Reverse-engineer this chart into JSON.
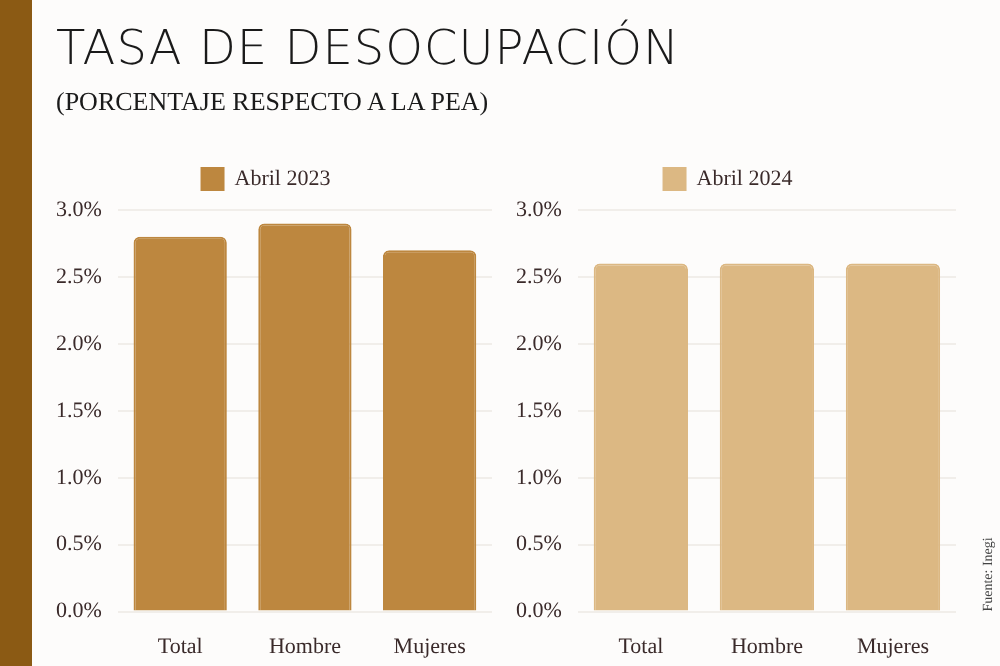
{
  "chart_data": [
    {
      "type": "bar",
      "title": "TASA DE DESOCUPACIÓN",
      "subtitle": "(PORCENTAJE RESPECTO A LA PEA)",
      "categories": [
        "Total",
        "Hombre",
        "Mujeres"
      ],
      "series": [
        {
          "name": "Abril 2023",
          "color": "#bd873f",
          "values": [
            2.8,
            2.9,
            2.7
          ]
        }
      ],
      "ylim": [
        0,
        3
      ],
      "yticks": [
        {
          "value": 0,
          "label": "0.0%"
        },
        {
          "value": 0.5,
          "label": "0.5%"
        },
        {
          "value": 1,
          "label": "1.0%"
        },
        {
          "value": 1.5,
          "label": "1.5%"
        },
        {
          "value": 2,
          "label": "2.0%"
        },
        {
          "value": 2.5,
          "label": "2.5%"
        },
        {
          "value": 3,
          "label": "3.0%"
        }
      ],
      "grid": "y",
      "legend": "top"
    },
    {
      "type": "bar",
      "categories": [
        "Total",
        "Hombre",
        "Mujeres"
      ],
      "series": [
        {
          "name": "Abril 2024",
          "color": "#dcb883",
          "values": [
            2.6,
            2.6,
            2.6
          ]
        }
      ],
      "ylim": [
        0,
        3
      ],
      "yticks": [
        {
          "value": 0,
          "label": "0.0%"
        },
        {
          "value": 0.5,
          "label": "0.5%"
        },
        {
          "value": 1,
          "label": "1.0%"
        },
        {
          "value": 1.5,
          "label": "1.5%"
        },
        {
          "value": 2,
          "label": "2.0%"
        },
        {
          "value": 2.5,
          "label": "2.5%"
        },
        {
          "value": 3,
          "label": "3.0%"
        }
      ],
      "grid": "y",
      "legend": "top",
      "annotations": [
        "Fuente: Inegi"
      ]
    }
  ]
}
